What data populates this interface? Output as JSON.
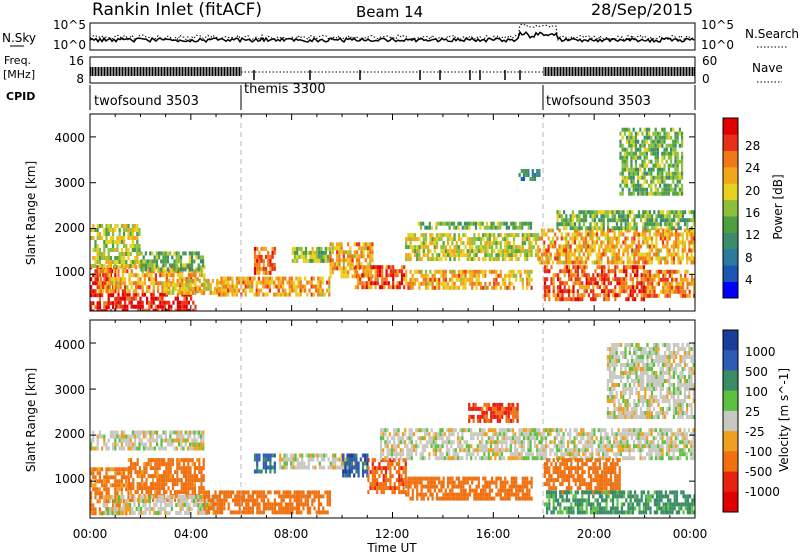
{
  "header": {
    "station": "Rankin Inlet (fitACF)",
    "beam": "Beam 14",
    "date": "28/Sep/2015"
  },
  "noise_panel": {
    "left_label": "N.Sky",
    "right_label": "N.Search",
    "left_ticks": [
      "10^5",
      "10^0"
    ],
    "right_ticks": [
      "10^5",
      "10^0"
    ]
  },
  "freq_panel": {
    "left_label_line1": "Freq.",
    "left_label_line2": "[MHz]",
    "right_label": "Nave",
    "left_ticks": [
      "16",
      "8"
    ],
    "right_ticks": [
      "60",
      "0"
    ]
  },
  "cpid": {
    "label": "CPID",
    "segments": [
      {
        "name": "twofsound 3503",
        "start_hour": 0,
        "end_hour": 6
      },
      {
        "name": "themis 3300",
        "start_hour": 6,
        "end_hour": 18
      },
      {
        "name": "twofsound 3503",
        "start_hour": 18,
        "end_hour": 24
      }
    ]
  },
  "x_ticks": [
    "00:00",
    "04:00",
    "08:00",
    "12:00",
    "16:00",
    "20:00",
    "00:00"
  ],
  "xlabel": "Time UT",
  "colors": {
    "power_data_dominant": "#e8a020",
    "velocity_ground_scatter": "#c8c8c0"
  },
  "chart_data": [
    {
      "type": "heatmap",
      "id": "power",
      "ylabel": "Slant Range [km]",
      "xlim": [
        0,
        24
      ],
      "ylim": [
        200,
        4500
      ],
      "y_ticks": [
        "1000",
        "2000",
        "3000",
        "4000"
      ],
      "colorbar": {
        "label": "Power [dB]",
        "ticks": [
          "28",
          "24",
          "20",
          "16",
          "12",
          "8",
          "4"
        ],
        "range": [
          0,
          32
        ],
        "colors": [
          "#0000ff",
          "#1c55b4",
          "#2a7aa0",
          "#3c8c6c",
          "#4ca040",
          "#8cc03c",
          "#e8d020",
          "#f0a818",
          "#f07818",
          "#e83018",
          "#e00000"
        ]
      },
      "regions": [
        {
          "t0": 0.0,
          "t1": 1.0,
          "r0": 200,
          "r1": 1200,
          "level": 30
        },
        {
          "t0": 1.0,
          "t1": 4.2,
          "r0": 250,
          "r1": 600,
          "level": 30
        },
        {
          "t0": 0.3,
          "t1": 4.5,
          "r0": 600,
          "r1": 1200,
          "level": 22
        },
        {
          "t0": 0.0,
          "t1": 2.0,
          "r0": 1200,
          "r1": 2100,
          "level": 18
        },
        {
          "t0": 2.0,
          "t1": 4.5,
          "r0": 1100,
          "r1": 1500,
          "level": 14
        },
        {
          "t0": 3.0,
          "t1": 5.5,
          "r0": 600,
          "r1": 900,
          "level": 20
        },
        {
          "t0": 5.0,
          "t1": 9.5,
          "r0": 600,
          "r1": 950,
          "level": 22
        },
        {
          "t0": 6.5,
          "t1": 7.3,
          "r0": 1000,
          "r1": 1600,
          "level": 26
        },
        {
          "t0": 8.0,
          "t1": 9.5,
          "r0": 1300,
          "r1": 1600,
          "level": 16
        },
        {
          "t0": 9.5,
          "t1": 11.2,
          "r0": 1000,
          "r1": 1700,
          "level": 22
        },
        {
          "t0": 10.5,
          "t1": 12.5,
          "r0": 700,
          "r1": 1200,
          "level": 26
        },
        {
          "t0": 12.5,
          "t1": 17.5,
          "r0": 700,
          "r1": 1100,
          "level": 22
        },
        {
          "t0": 12.5,
          "t1": 17.8,
          "r0": 1350,
          "r1": 1900,
          "level": 18
        },
        {
          "t0": 13.0,
          "t1": 17.5,
          "r0": 2000,
          "r1": 2150,
          "level": 14
        },
        {
          "t0": 17.8,
          "t1": 24.0,
          "r0": 1300,
          "r1": 2000,
          "level": 22
        },
        {
          "t0": 18.0,
          "t1": 22.0,
          "r0": 500,
          "r1": 1200,
          "level": 26
        },
        {
          "t0": 22.0,
          "t1": 24.0,
          "r0": 500,
          "r1": 1100,
          "level": 24
        },
        {
          "t0": 18.5,
          "t1": 24.0,
          "r0": 2000,
          "r1": 2400,
          "level": 14
        },
        {
          "t0": 17.0,
          "t1": 17.8,
          "r0": 3100,
          "r1": 3300,
          "level": 10
        },
        {
          "t0": 21.0,
          "t1": 23.5,
          "r0": 2800,
          "r1": 4200,
          "level": 14
        }
      ]
    },
    {
      "type": "heatmap",
      "id": "velocity",
      "ylabel": "Slant Range [km]",
      "xlim": [
        0,
        24
      ],
      "ylim": [
        200,
        4500
      ],
      "y_ticks": [
        "1000",
        "2000",
        "3000",
        "4000"
      ],
      "colorbar": {
        "label": "Velocity [m s^-1]",
        "ticks": [
          "1000",
          "500",
          "100",
          "25",
          "-25",
          "-100",
          "-500",
          "-1000"
        ],
        "colors": [
          "#1a3c9c",
          "#2c5ab4",
          "#3a8c64",
          "#5cc040",
          "#c8c8c0",
          "#f0a020",
          "#f07010",
          "#e82010",
          "#e00000"
        ]
      },
      "regions": [
        {
          "t0": 0.0,
          "t1": 1.5,
          "r0": 300,
          "r1": 1300,
          "level": -150
        },
        {
          "t0": 1.5,
          "t1": 4.5,
          "r0": 600,
          "r1": 1500,
          "level": -200
        },
        {
          "t0": 0.5,
          "t1": 5.0,
          "r0": 300,
          "r1": 700,
          "level": 0
        },
        {
          "t0": 0.0,
          "t1": 4.5,
          "r0": 1700,
          "r1": 2100,
          "level": 0
        },
        {
          "t0": 4.5,
          "t1": 9.5,
          "r0": 350,
          "r1": 800,
          "level": -250
        },
        {
          "t0": 6.5,
          "t1": 7.3,
          "r0": 1200,
          "r1": 1600,
          "level": 600
        },
        {
          "t0": 7.5,
          "t1": 10.5,
          "r0": 1300,
          "r1": 1600,
          "level": 0
        },
        {
          "t0": 10.0,
          "t1": 11.0,
          "r0": 1100,
          "r1": 1600,
          "level": 700
        },
        {
          "t0": 11.0,
          "t1": 12.5,
          "r0": 800,
          "r1": 1500,
          "level": -400
        },
        {
          "t0": 12.5,
          "t1": 17.5,
          "r0": 600,
          "r1": 1100,
          "level": -300
        },
        {
          "t0": 11.5,
          "t1": 24.0,
          "r0": 1500,
          "r1": 2150,
          "level": 0
        },
        {
          "t0": 18.0,
          "t1": 21.0,
          "r0": 800,
          "r1": 1500,
          "level": -300
        },
        {
          "t0": 18.0,
          "t1": 24.0,
          "r0": 300,
          "r1": 800,
          "level": 150
        },
        {
          "t0": 20.5,
          "t1": 24.0,
          "r0": 2400,
          "r1": 4000,
          "level": 0
        },
        {
          "t0": 15.0,
          "t1": 17.0,
          "r0": 2300,
          "r1": 2700,
          "level": -600
        }
      ]
    }
  ]
}
